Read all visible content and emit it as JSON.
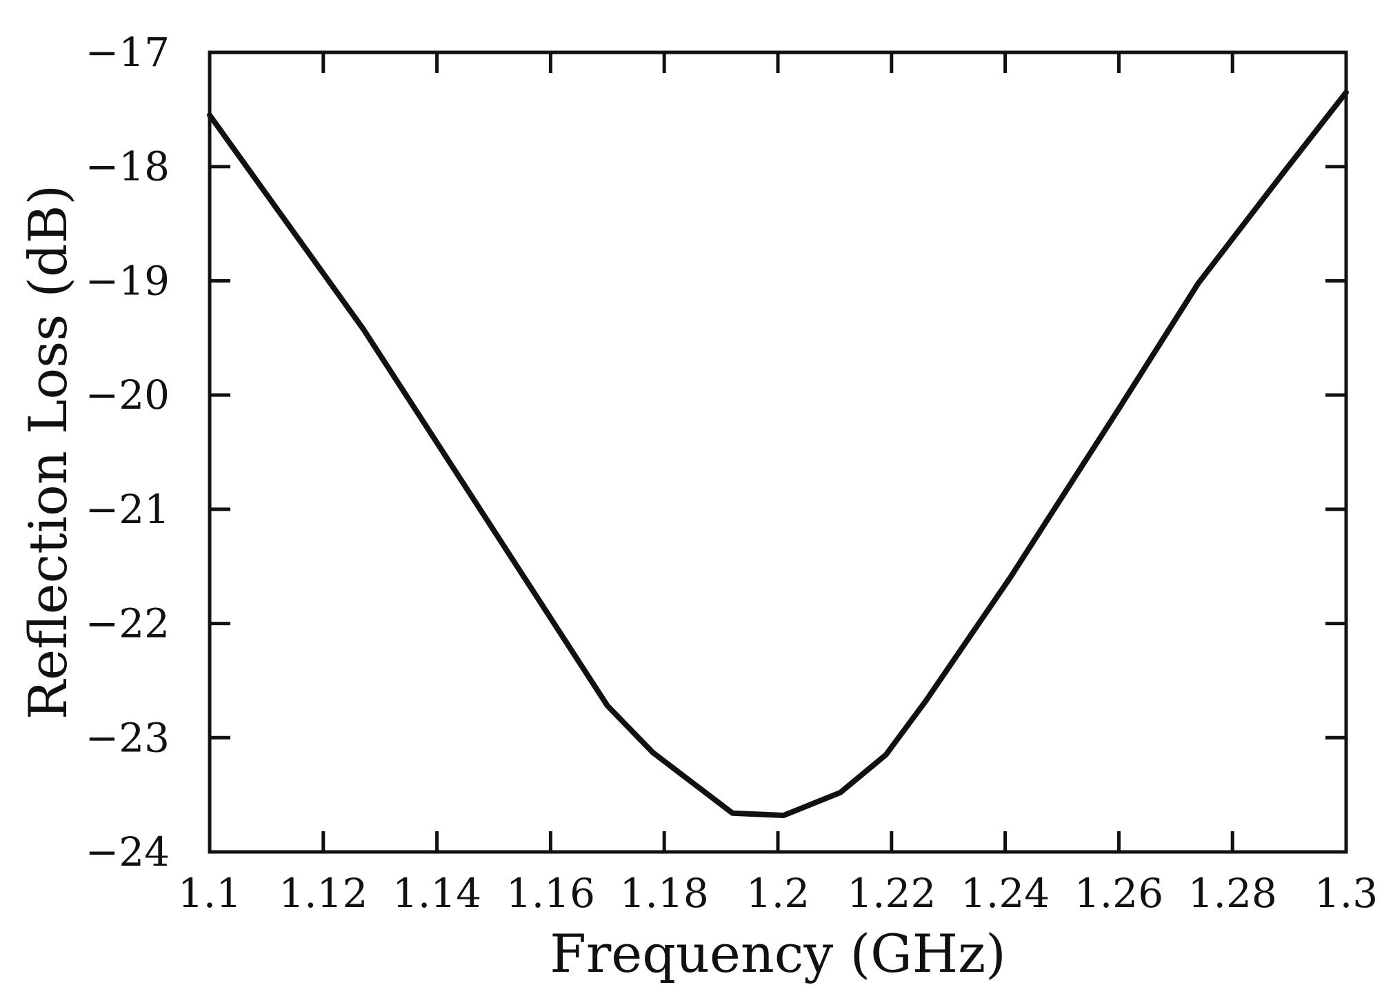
{
  "chart_data": {
    "type": "line",
    "title": "",
    "xlabel": "Frequency (GHz)",
    "ylabel": "Reflection Loss (dB)",
    "xlim": [
      1.1,
      1.3
    ],
    "ylim": [
      -24,
      -17
    ],
    "x_ticks": [
      1.1,
      1.12,
      1.14,
      1.16,
      1.18,
      1.2,
      1.22,
      1.24,
      1.26,
      1.28,
      1.3
    ],
    "x_tick_labels": [
      "1.1",
      "1.12",
      "1.14",
      "1.16",
      "1.18",
      "1.2",
      "1.22",
      "1.24",
      "1.26",
      "1.28",
      "1.3"
    ],
    "y_ticks": [
      -17,
      -18,
      -19,
      -20,
      -21,
      -22,
      -23,
      -24
    ],
    "y_tick_labels": [
      "−17",
      "−18",
      "−19",
      "−20",
      "−21",
      "−22",
      "−23",
      "−24"
    ],
    "grid": false,
    "legend": "none",
    "series": [
      {
        "color": "#111111",
        "x": [
          1.1,
          1.127,
          1.17,
          1.178,
          1.192,
          1.201,
          1.211,
          1.219,
          1.226,
          1.241,
          1.26,
          1.274,
          1.289,
          1.3
        ],
        "y": [
          -17.55,
          -19.42,
          -22.72,
          -23.13,
          -23.66,
          -23.68,
          -23.48,
          -23.15,
          -22.68,
          -21.59,
          -20.12,
          -19.02,
          -18.05,
          -17.35
        ]
      }
    ]
  }
}
